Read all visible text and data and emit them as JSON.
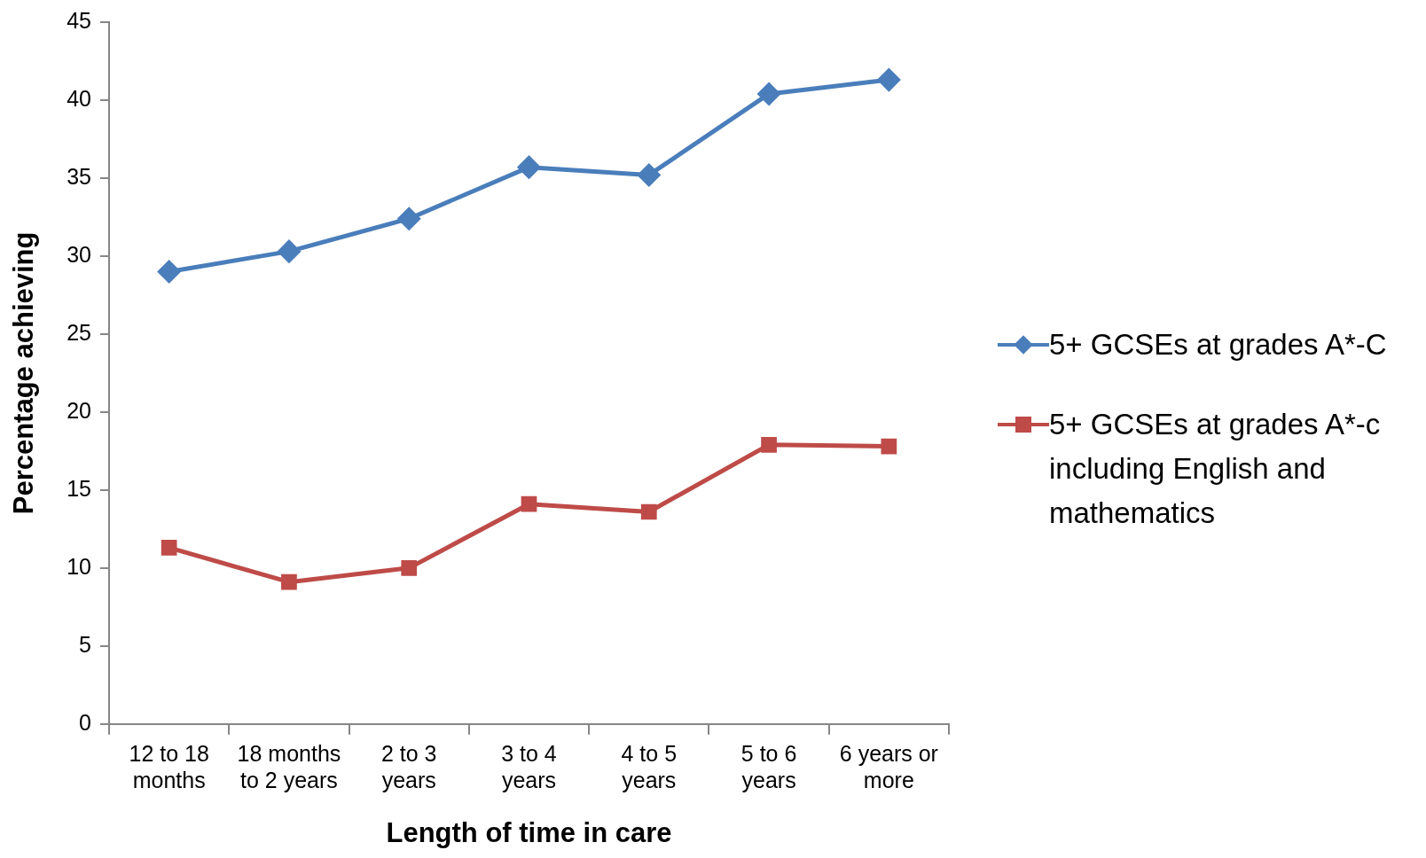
{
  "chart_data": {
    "type": "line",
    "xlabel": "Length of time in care",
    "ylabel": "Percentage achieving",
    "categories": [
      "12 to 18 months",
      "18 months to 2 years",
      "2 to 3 years",
      "3 to 4 years",
      "4 to 5 years",
      "5 to 6 years",
      "6 years or more"
    ],
    "series": [
      {
        "name": "5+ GCSEs at grades A*-C",
        "color": "#4a7ebb",
        "marker": "diamond",
        "values": [
          29.0,
          30.3,
          32.4,
          35.7,
          35.2,
          40.4,
          41.3
        ]
      },
      {
        "name": "5+ GCSEs at grades A*-c including English and mathematics",
        "color": "#be4b48",
        "marker": "square",
        "values": [
          11.3,
          9.1,
          10.0,
          14.1,
          13.6,
          17.9,
          17.8
        ]
      }
    ],
    "ylim": [
      0,
      45
    ],
    "yticks": [
      0,
      5,
      10,
      15,
      20,
      25,
      30,
      35,
      40,
      45
    ],
    "grid": false,
    "legend": "right",
    "line_style": "solid"
  }
}
